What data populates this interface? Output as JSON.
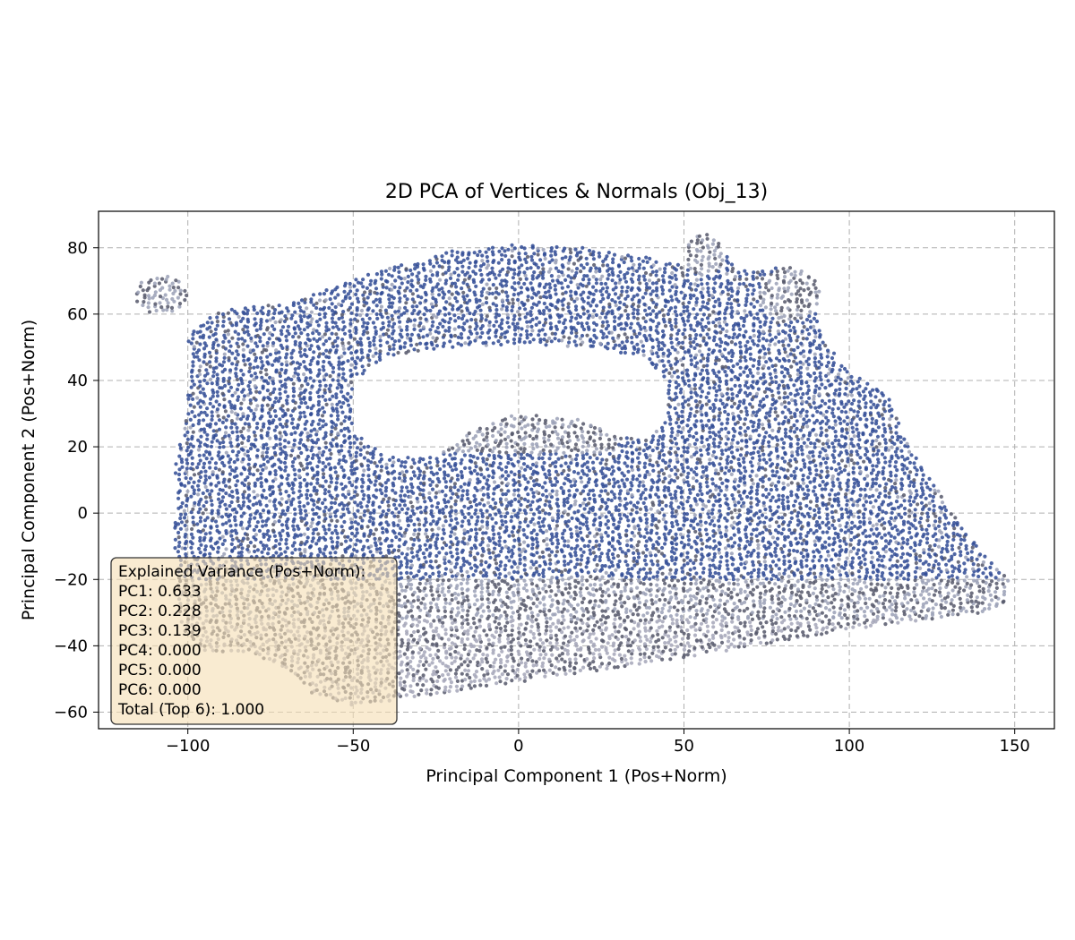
{
  "chart_data": {
    "type": "scatter",
    "title": "2D PCA of Vertices & Normals (Obj_13)",
    "xlabel": "Principal Component 1 (Pos+Norm)",
    "ylabel": "Principal Component 2 (Pos+Norm)",
    "xlim": [
      -127,
      162
    ],
    "ylim": [
      -65,
      91
    ],
    "xticks": [
      -100,
      -50,
      0,
      50,
      100,
      150
    ],
    "xtick_labels": [
      "−100",
      "−50",
      "0",
      "50",
      "100",
      "150"
    ],
    "yticks": [
      -60,
      -40,
      -20,
      0,
      20,
      40,
      60,
      80
    ],
    "ytick_labels": [
      "−60",
      "−40",
      "−20",
      "0",
      "20",
      "40",
      "60",
      "80"
    ],
    "grid": true,
    "colors": {
      "body": "#2f4a94",
      "light": "#9aa0b6",
      "dark": "#55576a",
      "base": "#a4a6b8"
    },
    "series": [
      {
        "description_of_shape": "iron",
        "outline": [
          [
            -100,
            55
          ],
          [
            -88,
            62
          ],
          [
            -70,
            63
          ],
          [
            -50,
            71
          ],
          [
            -20,
            79
          ],
          [
            0,
            81
          ],
          [
            20,
            80
          ],
          [
            40,
            77
          ],
          [
            52,
            74
          ],
          [
            56,
            84
          ],
          [
            62,
            79
          ],
          [
            68,
            73
          ],
          [
            78,
            74
          ],
          [
            88,
            68
          ],
          [
            92,
            52
          ],
          [
            101,
            42
          ],
          [
            112,
            35
          ],
          [
            118,
            20
          ],
          [
            130,
            2
          ],
          [
            140,
            -12
          ],
          [
            148,
            -20
          ],
          [
            148,
            -27
          ],
          [
            140,
            -30
          ],
          [
            100,
            -35
          ],
          [
            60,
            -42
          ],
          [
            20,
            -48
          ],
          [
            -20,
            -54
          ],
          [
            -50,
            -58
          ],
          [
            -62,
            -55
          ],
          [
            -68,
            -48
          ],
          [
            -82,
            -42
          ],
          [
            -95,
            -42
          ],
          [
            -102,
            -35
          ],
          [
            -104,
            -10
          ],
          [
            -104,
            15
          ],
          [
            -100,
            30
          ],
          [
            -100,
            55
          ]
        ],
        "hole": [
          [
            -50,
            40
          ],
          [
            -40,
            47
          ],
          [
            -20,
            50
          ],
          [
            0,
            51
          ],
          [
            20,
            50
          ],
          [
            38,
            47
          ],
          [
            45,
            40
          ],
          [
            45,
            28
          ],
          [
            38,
            23
          ],
          [
            30,
            23
          ],
          [
            20,
            28
          ],
          [
            0,
            30
          ],
          [
            -15,
            25
          ],
          [
            -25,
            17
          ],
          [
            -40,
            17
          ],
          [
            -50,
            25
          ],
          [
            -50,
            40
          ]
        ],
        "handle_nubs": [
          {
            "center": [
              -108,
              66
            ],
            "rx": 8,
            "ry": 6
          },
          {
            "center": [
              56,
              78
            ],
            "rx": 6,
            "ry": 6
          },
          {
            "center": [
              82,
              66
            ],
            "rx": 9,
            "ry": 8
          }
        ]
      }
    ],
    "annotation": {
      "lines": [
        "Explained Variance (Pos+Norm):",
        "PC1: 0.633",
        "PC2: 0.228",
        "PC3: 0.139",
        "PC4: 0.000",
        "PC5: 0.000",
        "PC6: 0.000",
        "Total (Top 6): 1.000"
      ],
      "background": "#f5deb3"
    }
  }
}
